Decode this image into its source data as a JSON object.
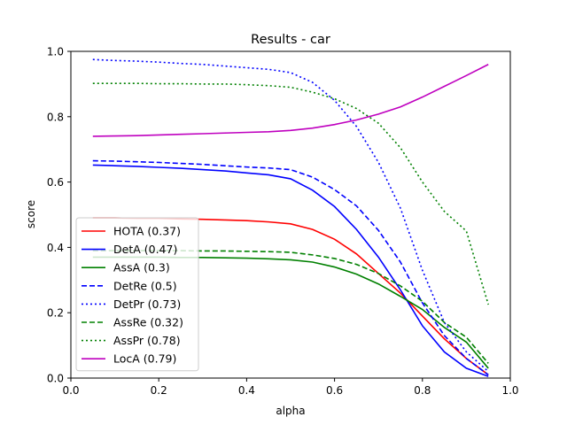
{
  "chart_data": {
    "type": "line",
    "title": "Results - car",
    "xlabel": "alpha",
    "ylabel": "score",
    "xlim": [
      0.0,
      1.0
    ],
    "ylim": [
      0.0,
      1.0
    ],
    "xticks": [
      "0.0",
      "0.2",
      "0.4",
      "0.6",
      "0.8",
      "1.0"
    ],
    "yticks": [
      "0.0",
      "0.2",
      "0.4",
      "0.6",
      "0.8",
      "1.0"
    ],
    "grid": false,
    "legend_position": "lower-left",
    "x": [
      0.05,
      0.1,
      0.15,
      0.2,
      0.25,
      0.3,
      0.35,
      0.4,
      0.45,
      0.5,
      0.55,
      0.6,
      0.65,
      0.7,
      0.75,
      0.8,
      0.85,
      0.9,
      0.95
    ],
    "series": [
      {
        "name": "HOTA (0.37)",
        "color": "#ff0000",
        "dash": "solid",
        "values": [
          0.49,
          0.49,
          0.489,
          0.489,
          0.487,
          0.486,
          0.484,
          0.482,
          0.478,
          0.472,
          0.455,
          0.425,
          0.38,
          0.32,
          0.26,
          0.19,
          0.12,
          0.06,
          0.01
        ]
      },
      {
        "name": "DetA (0.47)",
        "color": "#0000ff",
        "dash": "solid",
        "values": [
          0.652,
          0.65,
          0.648,
          0.645,
          0.642,
          0.638,
          0.634,
          0.628,
          0.622,
          0.61,
          0.575,
          0.525,
          0.455,
          0.37,
          0.27,
          0.16,
          0.08,
          0.03,
          0.005
        ]
      },
      {
        "name": "AssA (0.3)",
        "color": "#008000",
        "dash": "solid",
        "values": [
          0.37,
          0.37,
          0.37,
          0.37,
          0.369,
          0.369,
          0.368,
          0.367,
          0.365,
          0.362,
          0.355,
          0.34,
          0.318,
          0.288,
          0.25,
          0.21,
          0.155,
          0.11,
          0.03
        ]
      },
      {
        "name": "DetRe (0.5)",
        "color": "#0000ff",
        "dash": "dashed",
        "values": [
          0.665,
          0.664,
          0.662,
          0.66,
          0.657,
          0.654,
          0.65,
          0.646,
          0.643,
          0.638,
          0.615,
          0.577,
          0.527,
          0.452,
          0.355,
          0.23,
          0.13,
          0.06,
          0.01
        ]
      },
      {
        "name": "DetPr (0.73)",
        "color": "#0000ff",
        "dash": "dotted",
        "values": [
          0.975,
          0.972,
          0.97,
          0.967,
          0.963,
          0.96,
          0.955,
          0.95,
          0.945,
          0.935,
          0.905,
          0.85,
          0.77,
          0.66,
          0.52,
          0.33,
          0.17,
          0.08,
          0.02
        ]
      },
      {
        "name": "AssRe (0.32)",
        "color": "#008000",
        "dash": "dashed",
        "values": [
          0.39,
          0.39,
          0.39,
          0.39,
          0.39,
          0.389,
          0.389,
          0.388,
          0.387,
          0.385,
          0.377,
          0.366,
          0.348,
          0.32,
          0.282,
          0.235,
          0.17,
          0.125,
          0.045
        ]
      },
      {
        "name": "AssPr (0.78)",
        "color": "#008000",
        "dash": "dotted",
        "values": [
          0.902,
          0.902,
          0.902,
          0.901,
          0.901,
          0.9,
          0.9,
          0.898,
          0.895,
          0.89,
          0.875,
          0.855,
          0.825,
          0.78,
          0.705,
          0.6,
          0.51,
          0.45,
          0.225
        ]
      },
      {
        "name": "LocA (0.79)",
        "color": "#bf00bf",
        "dash": "solid",
        "values": [
          0.74,
          0.741,
          0.742,
          0.744,
          0.746,
          0.748,
          0.75,
          0.752,
          0.754,
          0.758,
          0.765,
          0.776,
          0.79,
          0.808,
          0.83,
          0.86,
          0.893,
          0.926,
          0.96
        ]
      }
    ]
  }
}
